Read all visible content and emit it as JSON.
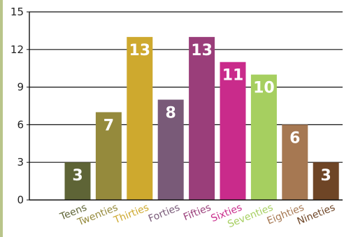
{
  "chart_data": {
    "type": "bar",
    "categories": [
      "Teens",
      "Twenties",
      "Thirties",
      "Forties",
      "Fifties",
      "Sixties",
      "Seventies",
      "Eighties",
      "Nineties"
    ],
    "values": [
      3,
      7,
      13,
      8,
      13,
      11,
      10,
      6,
      3
    ],
    "ylim": [
      0,
      15
    ],
    "yticks": [
      "0",
      "3",
      "6",
      "9",
      "12",
      "15"
    ],
    "data_labels": [
      "3",
      "7",
      "13",
      "8",
      "13",
      "11",
      "10",
      "6",
      "3"
    ],
    "grid": true,
    "colors": {
      "bars": [
        "#5e6436",
        "#958a3c",
        "#cea92e",
        "#795a78",
        "#9a3e7a",
        "#c92b8b",
        "#a6cf60",
        "#a67852",
        "#6e4526"
      ],
      "labels": [
        "#5e6436",
        "#958a3c",
        "#cea92e",
        "#795a78",
        "#9a3e7a",
        "#c92b8b",
        "#a6cf60",
        "#a67852",
        "#6e4526"
      ]
    }
  }
}
